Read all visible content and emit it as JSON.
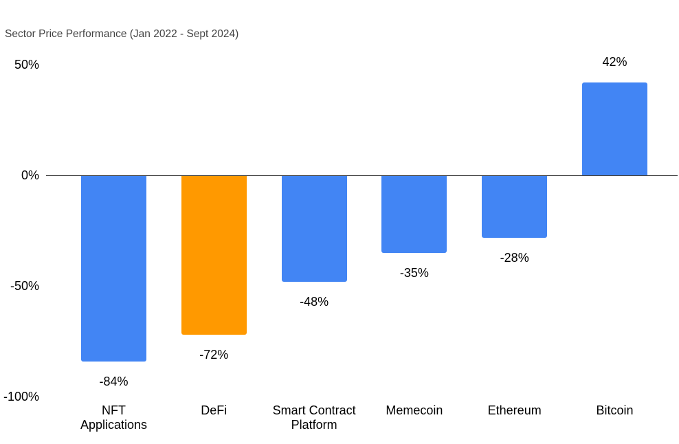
{
  "chart_data": {
    "type": "bar",
    "title": "Sector Price Performance (Jan 2022 - Sept 2024)",
    "categories": [
      "NFT\nApplications",
      "DeFi",
      "Smart Contract\nPlatform",
      "Memecoin",
      "Ethereum",
      "Bitcoin"
    ],
    "values": [
      -84,
      -72,
      -48,
      -35,
      -28,
      42
    ],
    "data_labels": [
      "-84%",
      "-72%",
      "-48%",
      "-35%",
      "-28%",
      "42%"
    ],
    "bar_colors": [
      "#4285F4",
      "#FF9900",
      "#4285F4",
      "#4285F4",
      "#4285F4",
      "#4285F4"
    ],
    "yticks": [
      {
        "value": 50,
        "label": "50%"
      },
      {
        "value": 0,
        "label": "0%"
      },
      {
        "value": -50,
        "label": "-50%"
      },
      {
        "value": -100,
        "label": "-100%"
      }
    ],
    "ylim": [
      -100,
      50
    ],
    "xlabel": "",
    "ylabel": "",
    "grid": false,
    "legend": false,
    "colors": {
      "bar_blue": "#4285F4",
      "bar_orange": "#FF9900",
      "axis_line": "#424242",
      "title_text": "#434343",
      "label_text": "#000000",
      "background": "#ffffff"
    }
  }
}
